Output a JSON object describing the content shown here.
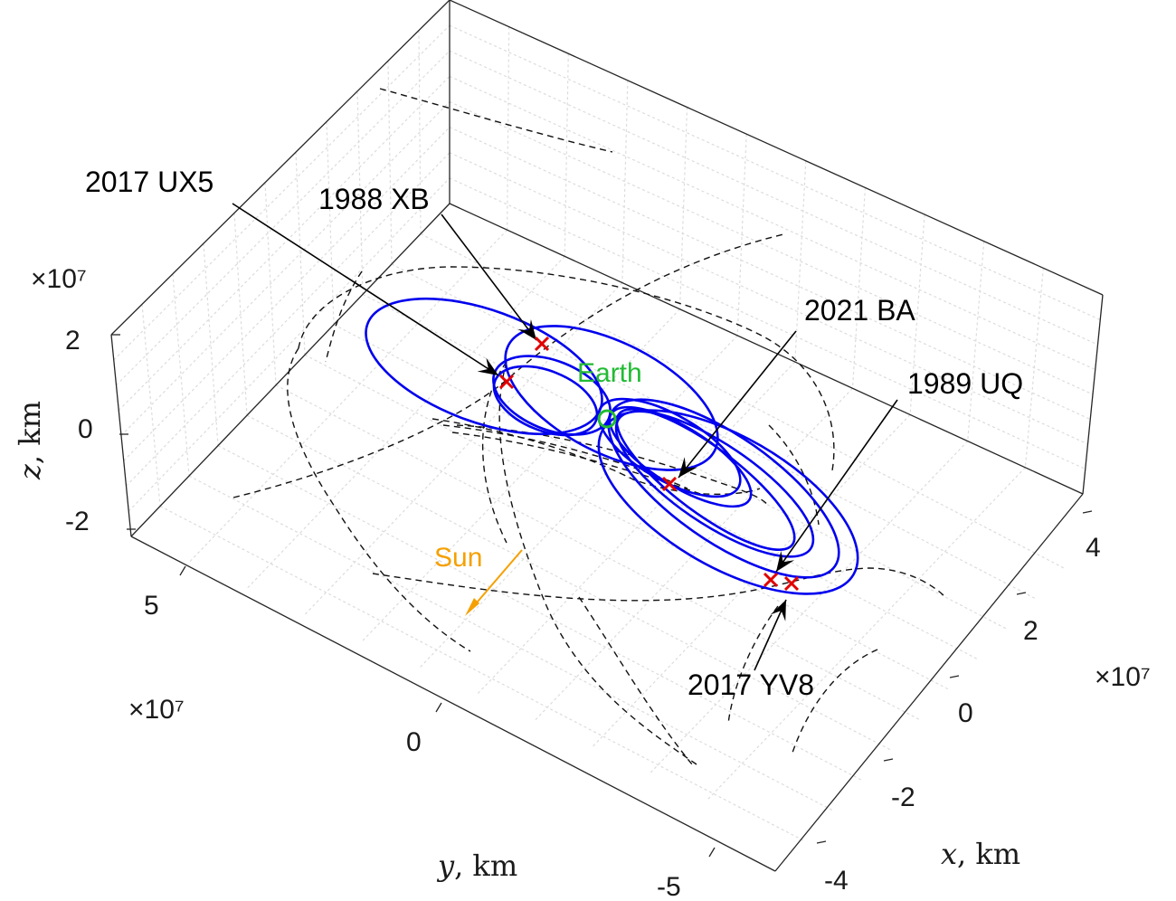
{
  "chart_data": {
    "type": "line",
    "title": "",
    "projection": "3d",
    "grid": true,
    "axes": {
      "x": {
        "label": "x, km",
        "var": "x",
        "unit": "km",
        "exponent": "×10⁷",
        "ticks": [
          "-4",
          "-2",
          "0",
          "2",
          "4"
        ],
        "tick_values": [
          -40000000.0,
          -20000000.0,
          0,
          20000000.0,
          40000000.0
        ]
      },
      "y": {
        "label": "y, km",
        "var": "y",
        "unit": "km",
        "exponent": "×10⁷",
        "ticks": [
          "5",
          "0",
          "-5"
        ],
        "tick_values": [
          50000000.0,
          0,
          -50000000.0
        ]
      },
      "z": {
        "label": "z, km",
        "var": "z",
        "unit": "km",
        "exponent": "×10⁷",
        "ticks": [
          "2",
          "0",
          "-2"
        ],
        "tick_values": [
          20000000.0,
          0,
          -20000000.0
        ]
      }
    },
    "series": [
      {
        "style": "blue solid",
        "color": "#0000ee",
        "kind": "orbits in rotating frame"
      },
      {
        "style": "black dashed",
        "color": "#000000",
        "kind": "projections"
      }
    ],
    "markers": [
      {
        "label": "2017 UX5",
        "marker": "x",
        "color": "#e00000"
      },
      {
        "label": "1988 XB",
        "marker": "x",
        "color": "#e00000"
      },
      {
        "label": "2021 BA",
        "marker": "x",
        "color": "#e00000"
      },
      {
        "label": "1989 UQ",
        "marker": "x",
        "color": "#e00000"
      },
      {
        "label": "2017 YV8",
        "marker": "x",
        "color": "#e00000"
      }
    ],
    "earth": {
      "label": "Earth",
      "color": "#22bb33",
      "marker": "o"
    },
    "sun": {
      "label": "Sun",
      "color": "#f5a000",
      "direction": "arrow"
    }
  }
}
